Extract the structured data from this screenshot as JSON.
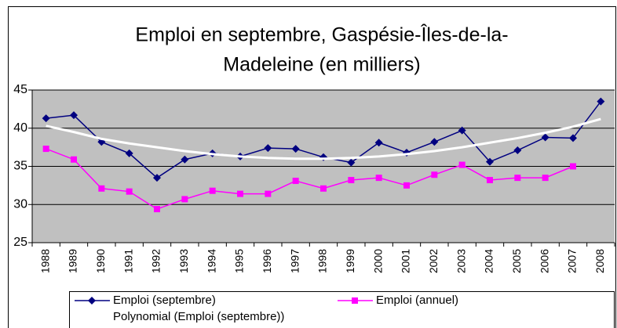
{
  "chart_data": {
    "type": "line",
    "title": [
      "Emploi en septembre, Gaspésie-Îles-de-la-",
      "Madeleine (en milliers)"
    ],
    "categories": [
      "1988",
      "1989",
      "1990",
      "1991",
      "1992",
      "1993",
      "1994",
      "1995",
      "1996",
      "1997",
      "1998",
      "1999",
      "2000",
      "2001",
      "2002",
      "2003",
      "2004",
      "2005",
      "2006",
      "2007",
      "2008"
    ],
    "series": [
      {
        "name": "Emploi (septembre)",
        "color": "#000080",
        "marker": "diamond",
        "values": [
          41.3,
          41.7,
          38.2,
          36.7,
          33.5,
          35.9,
          36.7,
          36.3,
          37.4,
          37.3,
          36.2,
          35.5,
          38.1,
          36.8,
          38.2,
          39.7,
          35.6,
          37.1,
          38.8,
          38.7,
          43.5
        ]
      },
      {
        "name": "Emploi (annuel)",
        "color": "#ff00ff",
        "marker": "square",
        "values": [
          37.3,
          35.9,
          32.1,
          31.7,
          29.4,
          30.7,
          31.8,
          31.4,
          31.4,
          33.1,
          32.1,
          33.2,
          33.5,
          32.5,
          33.9,
          35.2,
          33.2,
          33.5,
          33.5,
          35.0,
          null
        ]
      },
      {
        "name": "Polynomial (Emploi (septembre))",
        "color": "#ffffff",
        "marker": "none",
        "values": [
          40.3,
          39.5,
          38.6,
          38.0,
          37.5,
          37.0,
          36.6,
          36.3,
          36.1,
          36.0,
          36.0,
          36.1,
          36.3,
          36.6,
          37.0,
          37.5,
          38.1,
          38.7,
          39.4,
          40.2,
          41.2
        ]
      }
    ],
    "ylim": [
      25,
      45
    ],
    "yticks": [
      25,
      30,
      35,
      40,
      45
    ],
    "grid": true
  }
}
